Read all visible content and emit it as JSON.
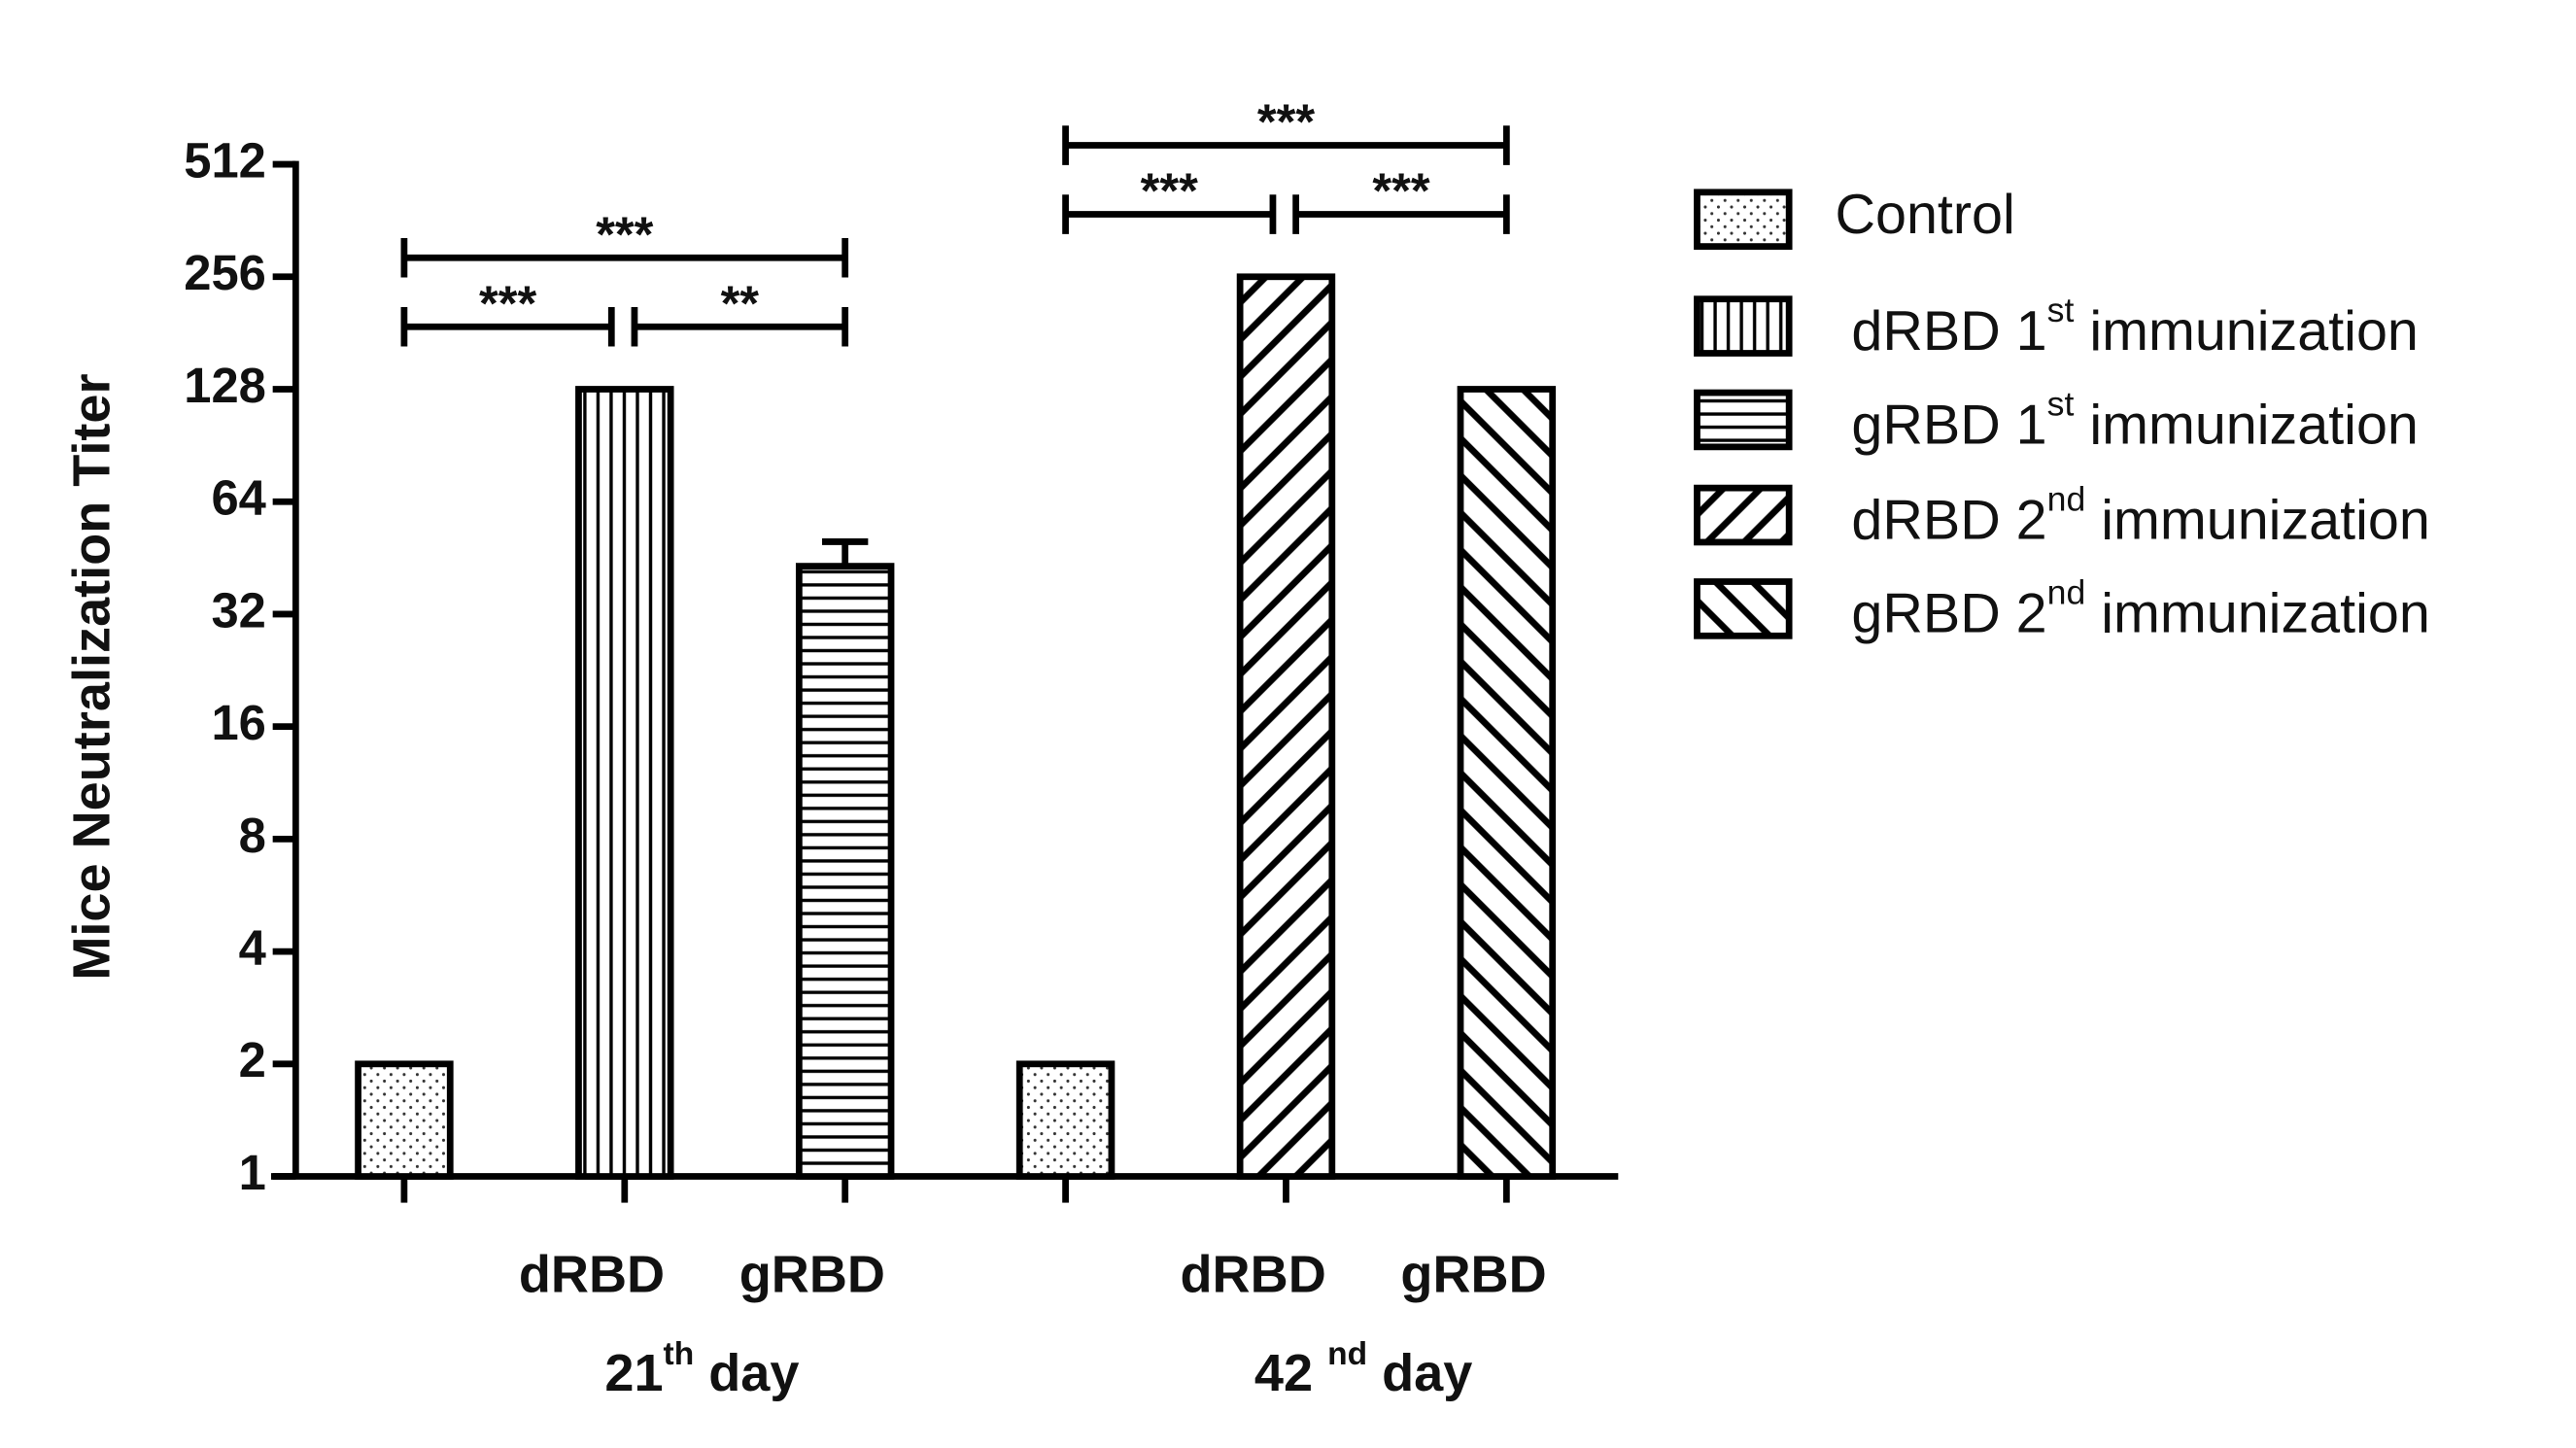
{
  "chart_data": {
    "type": "bar",
    "y_label": "Mice Neutralization Titer",
    "categories": [
      null,
      "dRBD",
      "gRBD",
      null,
      "dRBD",
      "gRBD"
    ],
    "groups": [
      {
        "label": [
          "21",
          "th",
          " day"
        ],
        "from": 0,
        "to": 2
      },
      {
        "label": [
          "42 ",
          "nd",
          " day"
        ],
        "from": 3,
        "to": 5
      }
    ],
    "log_scale": 2,
    "ylim": [
      1,
      512
    ],
    "yticks": [
      1,
      2,
      4,
      8,
      16,
      32,
      64,
      128,
      256,
      512
    ],
    "series": [
      {
        "name": [
          "Control"
        ],
        "color": "#000000",
        "pattern": "dots",
        "values": [
          2,
          null,
          null,
          2,
          null,
          null
        ]
      },
      {
        "name": [
          "dRBD 1",
          "st",
          " immunization"
        ],
        "color": "#000000",
        "pattern": "vertical",
        "values": [
          null,
          128,
          null,
          null,
          null,
          null
        ]
      },
      {
        "name": [
          "gRBD 1",
          "st",
          " immunization"
        ],
        "color": "#000000",
        "pattern": "horizontal",
        "values": [
          null,
          null,
          43,
          null,
          null,
          null
        ],
        "errors": [
          null,
          null,
          7,
          null,
          null,
          null
        ]
      },
      {
        "name": [
          "dRBD 2",
          "nd",
          " immunization"
        ],
        "color": "#000000",
        "pattern": "diag-down",
        "values": [
          null,
          null,
          null,
          null,
          256,
          null
        ]
      },
      {
        "name": [
          "gRBD 2",
          "nd",
          " immunization"
        ],
        "color": "#000000",
        "pattern": "diag-up",
        "values": [
          null,
          null,
          null,
          null,
          null,
          128
        ]
      }
    ],
    "significance": [
      {
        "from": 0,
        "to": 2,
        "label": "***"
      },
      {
        "from": 0,
        "to": 1,
        "label": "***"
      },
      {
        "from": 1,
        "to": 2,
        "label": "**"
      },
      {
        "from": 3,
        "to": 5,
        "label": "***"
      },
      {
        "from": 3,
        "to": 4,
        "label": "***"
      },
      {
        "from": 4,
        "to": 5,
        "label": "***"
      }
    ],
    "legend": "right"
  }
}
